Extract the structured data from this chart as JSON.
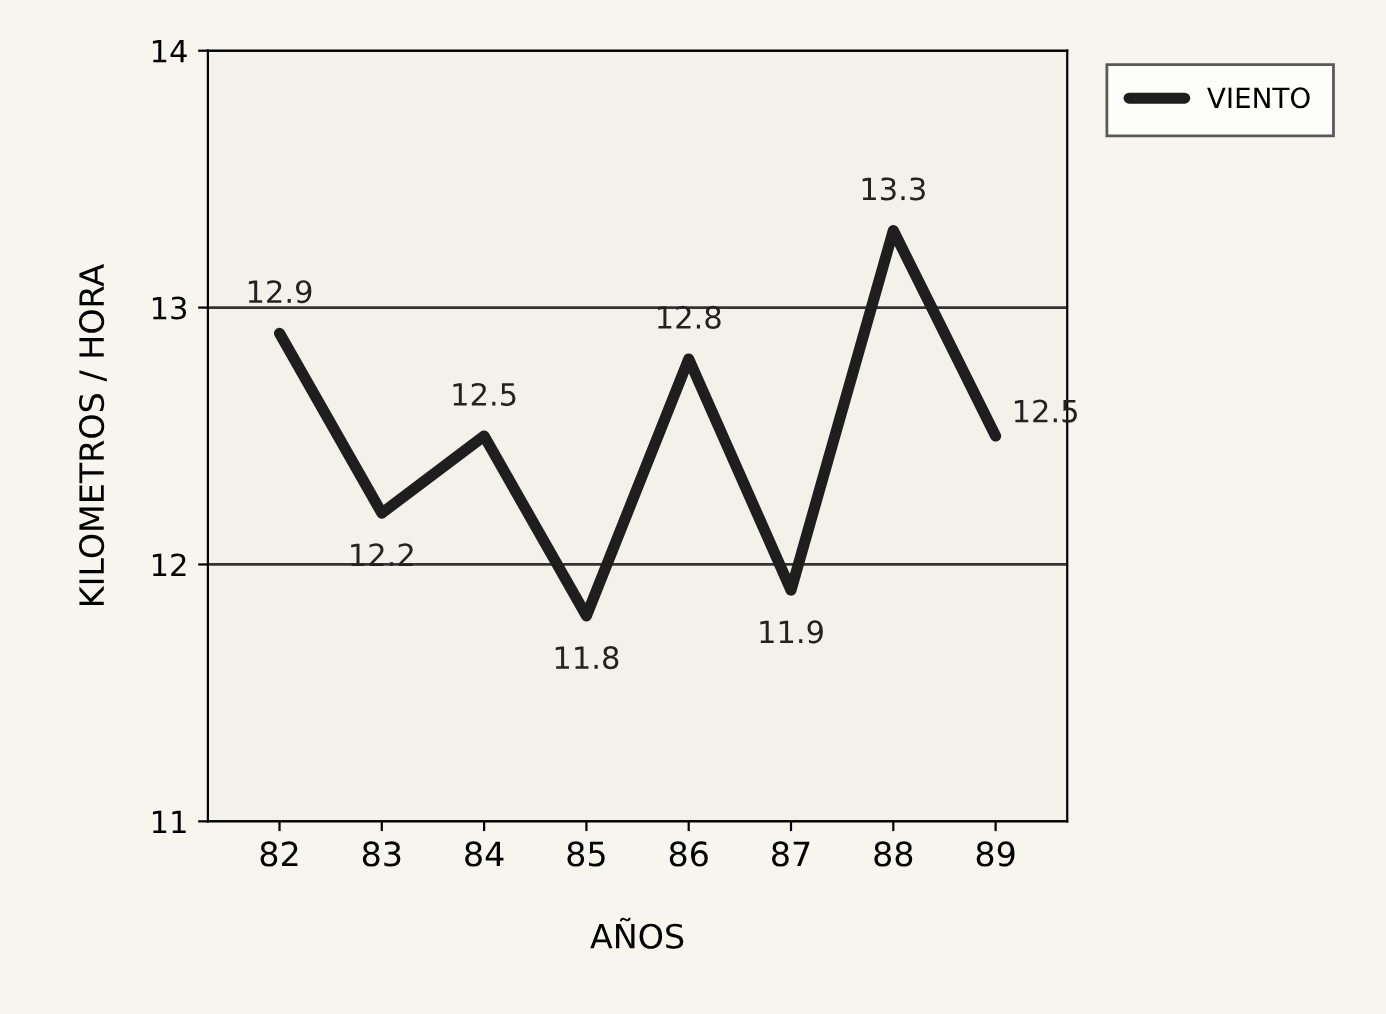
{
  "chart_data": {
    "type": "line",
    "xlabel": "AÑOS",
    "ylabel": "KILOMETROS / HORA",
    "categories": [
      "82",
      "83",
      "84",
      "85",
      "86",
      "87",
      "88",
      "89"
    ],
    "series": [
      {
        "name": "VIENTO",
        "color": "#1e1e1e",
        "values": [
          12.9,
          12.2,
          12.5,
          11.8,
          12.8,
          11.9,
          13.3,
          12.5
        ]
      }
    ],
    "ylim": [
      11,
      14
    ],
    "yticks": [
      11,
      12,
      13,
      14
    ],
    "grid": "y",
    "legend": "top right",
    "data_labels": true,
    "marker": "none",
    "line_style": "solid"
  }
}
